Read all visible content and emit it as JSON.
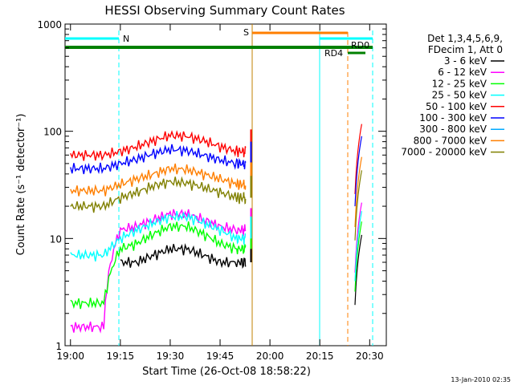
{
  "chart_data": {
    "type": "line",
    "title": "HESSI Observing Summary Count Rates",
    "xlabel": "Start Time (26-Oct-08 18:58:22)",
    "ylabel": "Count Rate (s⁻¹ detector⁻¹)",
    "y_scale": "log",
    "ylim": [
      1,
      1000
    ],
    "xlim": [
      "18:58:22",
      "20:35:00"
    ],
    "x_ticks": [
      "19:00",
      "19:15",
      "19:30",
      "19:45",
      "20:00",
      "20:15",
      "20:30"
    ],
    "y_ticks": [
      "1",
      "10",
      "100",
      "1000"
    ],
    "grid": false,
    "legend_position": "right",
    "legend_header": [
      "Det 1,3,4,5,6,9,",
      "FDecim 1, Att 0"
    ],
    "footer_date": "13-Jan-2010 02:35",
    "series": [
      {
        "name": "3 - 6 keV",
        "color": "#000000",
        "x": [
          "19:00",
          "19:05",
          "19:10",
          "19:15",
          "19:20",
          "19:25",
          "19:30",
          "19:35",
          "19:40",
          "19:45",
          "19:50",
          "19:52"
        ],
        "values": [
          null,
          null,
          null,
          6,
          6,
          7,
          8,
          8,
          7,
          6,
          6,
          6
        ]
      },
      {
        "name": "6 - 12 keV",
        "color": "#ff00ff",
        "x": [
          "19:00",
          "19:05",
          "19:10",
          "19:15",
          "19:20",
          "19:25",
          "19:30",
          "19:35",
          "19:40",
          "19:45",
          "19:50",
          "19:52"
        ],
        "values": [
          1.5,
          1.5,
          1.5,
          12,
          13,
          15,
          17,
          17,
          15,
          13,
          12,
          12
        ]
      },
      {
        "name": "12 - 25 keV",
        "color": "#00ff00",
        "x": [
          "19:00",
          "19:05",
          "19:10",
          "19:15",
          "19:20",
          "19:25",
          "19:30",
          "19:35",
          "19:40",
          "19:45",
          "19:50",
          "19:52"
        ],
        "values": [
          2.5,
          2.5,
          2.5,
          8,
          9,
          11,
          13,
          13,
          11,
          9,
          8,
          8
        ]
      },
      {
        "name": "25 - 50 keV",
        "color": "#00ffff",
        "x": [
          "19:00",
          "19:05",
          "19:10",
          "19:15",
          "19:20",
          "19:25",
          "19:30",
          "19:35",
          "19:40",
          "19:45",
          "19:50",
          "19:52"
        ],
        "values": [
          7,
          7,
          7,
          10,
          12,
          14,
          16,
          16,
          14,
          12,
          10,
          10
        ]
      },
      {
        "name": "50 - 100 keV",
        "color": "#ff0000",
        "x": [
          "19:00",
          "19:05",
          "19:10",
          "19:15",
          "19:20",
          "19:25",
          "19:30",
          "19:35",
          "19:40",
          "19:45",
          "19:50",
          "19:52"
        ],
        "values": [
          60,
          60,
          60,
          65,
          72,
          82,
          92,
          90,
          82,
          72,
          65,
          65
        ]
      },
      {
        "name": "100 - 300 keV",
        "color": "#0000ff",
        "x": [
          "19:00",
          "19:05",
          "19:10",
          "19:15",
          "19:20",
          "19:25",
          "19:30",
          "19:35",
          "19:40",
          "19:45",
          "19:50",
          "19:52"
        ],
        "values": [
          45,
          45,
          45,
          50,
          55,
          62,
          68,
          66,
          60,
          54,
          50,
          50
        ]
      },
      {
        "name": "300 - 800 keV",
        "color": "#00aaff",
        "x": [],
        "values": []
      },
      {
        "name": "800 - 7000 keV",
        "color": "#ff7f00",
        "x": [
          "19:00",
          "19:05",
          "19:10",
          "19:15",
          "19:20",
          "19:25",
          "19:30",
          "19:35",
          "19:40",
          "19:45",
          "19:50",
          "19:52"
        ],
        "values": [
          28,
          28,
          28,
          32,
          36,
          40,
          45,
          44,
          40,
          36,
          32,
          32
        ]
      },
      {
        "name": "7000 - 20000 keV",
        "color": "#808000",
        "x": [
          "19:00",
          "19:05",
          "19:10",
          "19:15",
          "19:20",
          "19:25",
          "19:30",
          "19:35",
          "19:40",
          "19:45",
          "19:50",
          "19:52"
        ],
        "values": [
          20,
          20,
          20,
          24,
          27,
          31,
          34,
          33,
          30,
          27,
          24,
          24
        ]
      }
    ],
    "annotations": [
      {
        "label": "N",
        "color": "#00ffff"
      },
      {
        "label": "S",
        "color": "#ff7f00"
      },
      {
        "label": "RD4",
        "color": "#000000"
      },
      {
        "label": "RD0",
        "color": "#000000"
      }
    ]
  }
}
